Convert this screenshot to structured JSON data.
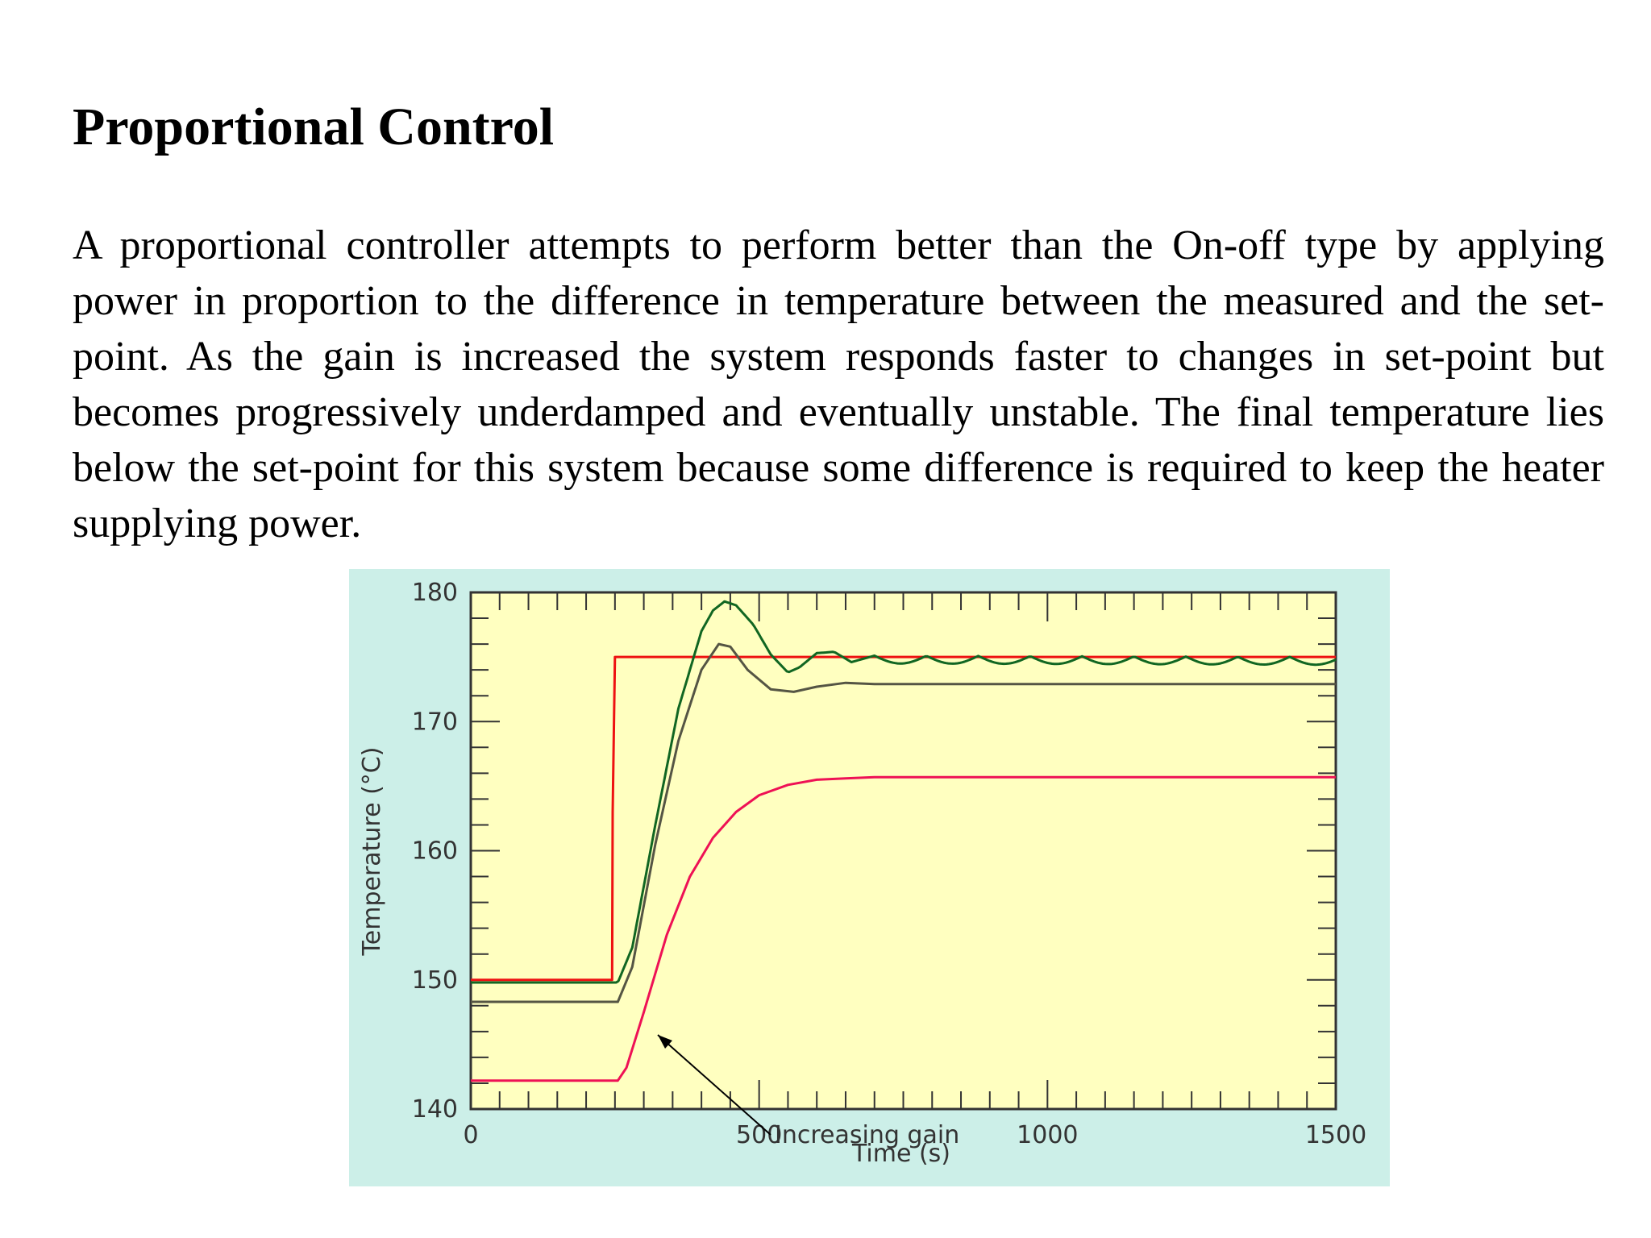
{
  "page": {
    "title": "Proportional Control",
    "paragraph": "A proportional controller attempts to perform better than the On-off type by applying power in proportion to the difference in temperature between the measured and the set-point.  As the gain is increased the system responds faster to changes in set-point but becomes progressively underdamped and eventually unstable. The final temperature lies below the set-point for this system because some difference is required to keep the heater supplying power."
  },
  "chart_data": {
    "type": "line",
    "title": "",
    "xlabel": "Time (s)",
    "ylabel": "Temperature (°C)",
    "xlim": [
      0,
      1500
    ],
    "ylim": [
      140,
      180
    ],
    "xticks": [
      "0",
      "500",
      "1000",
      "1500"
    ],
    "yticks": [
      "140",
      "150",
      "160",
      "170",
      "180"
    ],
    "annotation": "Increasing gain",
    "colors": {
      "plot_bg": "#ffffc0",
      "figure_bg": "#ccefe8",
      "set_point": "#ee1111",
      "low_gain": "#ee1155",
      "mid_gain": "#555544",
      "high_gain": "#116622"
    },
    "series": [
      {
        "key": "set_point",
        "x": [
          0,
          245,
          246,
          250,
          255,
          1500
        ],
        "y": [
          150,
          150,
          163,
          175,
          175,
          175
        ]
      },
      {
        "key": "low_gain",
        "x": [
          0,
          255,
          270,
          300,
          340,
          380,
          420,
          460,
          500,
          550,
          600,
          650,
          700,
          1500
        ],
        "y": [
          142.2,
          142.2,
          143.2,
          147.5,
          153.5,
          158.0,
          161.0,
          163.0,
          164.3,
          165.1,
          165.5,
          165.6,
          165.7,
          165.7
        ]
      },
      {
        "key": "mid_gain",
        "x": [
          0,
          255,
          280,
          320,
          360,
          400,
          430,
          450,
          480,
          520,
          560,
          600,
          650,
          700,
          1500
        ],
        "y": [
          148.3,
          148.3,
          151.0,
          160.5,
          168.5,
          174.0,
          176.0,
          175.8,
          174.0,
          172.5,
          172.3,
          172.7,
          173.0,
          172.9,
          172.9
        ]
      },
      {
        "key": "high_gain",
        "x": [
          0,
          255,
          280,
          320,
          360,
          400,
          420,
          440,
          460,
          490,
          520,
          550,
          570,
          600,
          630,
          660,
          700,
          1500
        ],
        "y": [
          149.8,
          149.8,
          152.5,
          162.0,
          171.0,
          177.0,
          178.6,
          179.3,
          179.0,
          177.5,
          175.2,
          173.8,
          174.2,
          175.3,
          175.4,
          174.6,
          175.1,
          175.0
        ],
        "ripple": 0.6
      }
    ]
  }
}
